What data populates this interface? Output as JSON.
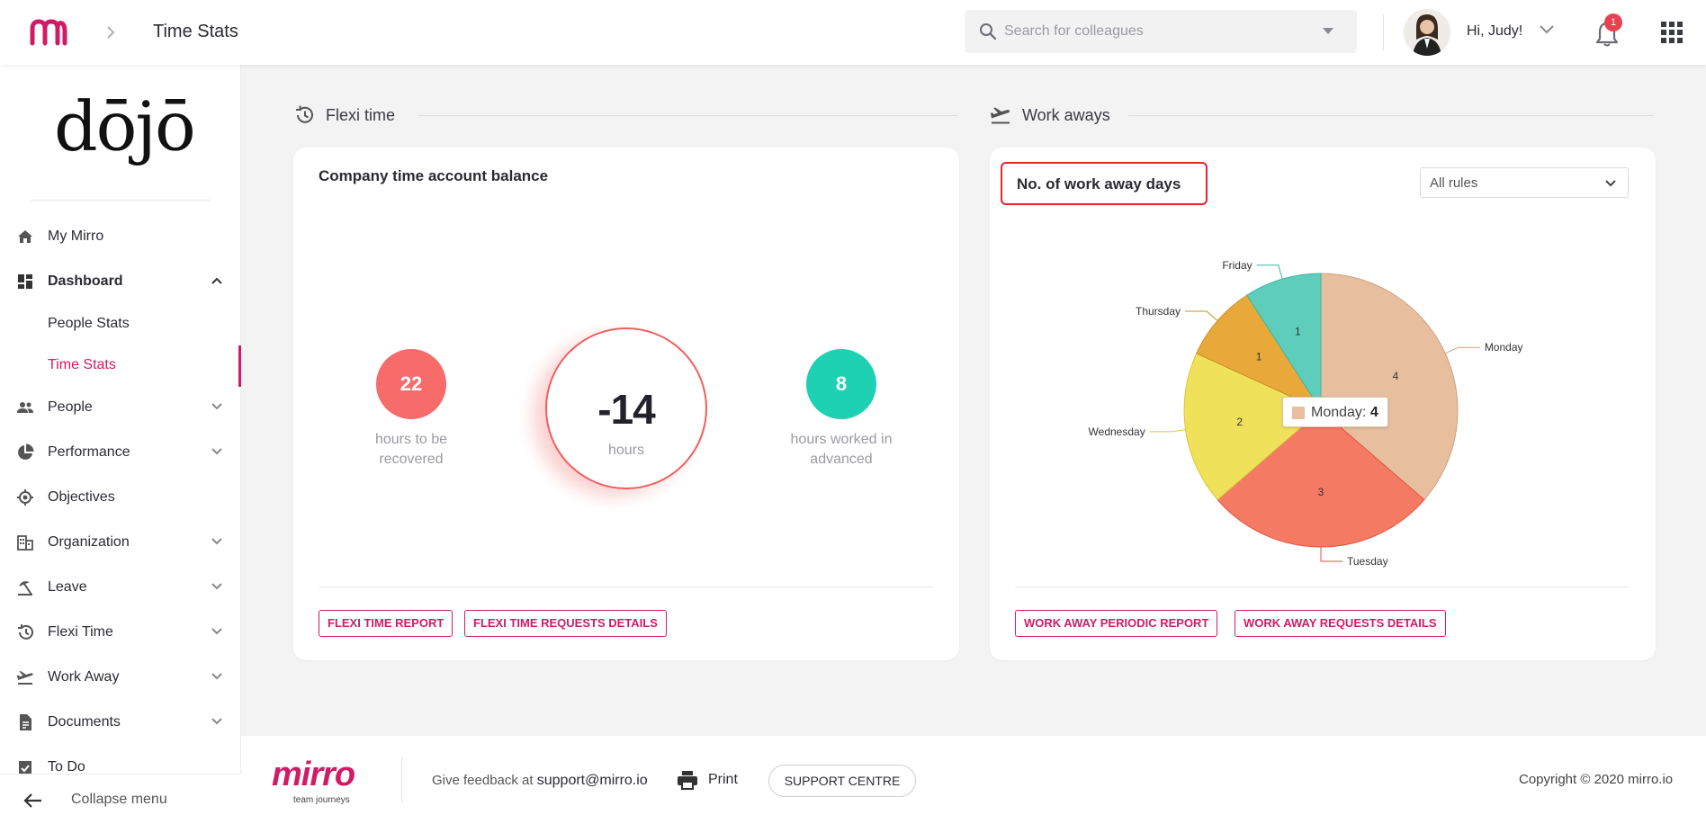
{
  "topbar": {
    "page_title": "Time Stats",
    "search_placeholder": "Search for colleagues",
    "greeting": "Hi, Judy!",
    "notification_count": "1"
  },
  "sidebar": {
    "brand": "dōjō",
    "items": [
      {
        "label": "My Mirro"
      },
      {
        "label": "Dashboard"
      },
      {
        "label": "People"
      },
      {
        "label": "Performance"
      },
      {
        "label": "Objectives"
      },
      {
        "label": "Organization"
      },
      {
        "label": "Leave"
      },
      {
        "label": "Flexi Time"
      },
      {
        "label": "Work Away"
      },
      {
        "label": "Documents"
      },
      {
        "label": "To Do"
      }
    ],
    "dashboard_subitems": [
      {
        "label": "People Stats"
      },
      {
        "label": "Time Stats"
      }
    ],
    "collapse_label": "Collapse menu"
  },
  "flexi": {
    "section_title": "Flexi time",
    "card_title": "Company time account balance",
    "to_recover_value": "22",
    "to_recover_caption": "hours to be recovered",
    "balance_value": "-14",
    "balance_unit": "hours",
    "advanced_value": "8",
    "advanced_caption": "hours worked in advanced",
    "report_button": "FLEXI TIME REPORT",
    "requests_button": "FLEXI TIME REQUESTS DETAILS"
  },
  "workaways": {
    "section_title": "Work aways",
    "card_title": "No. of work away days",
    "filter_value": "All rules",
    "tooltip_label": "Monday:",
    "tooltip_value": "4",
    "report_button": "WORK AWAY PERIODIC REPORT",
    "requests_button": "WORK AWAY REQUESTS DETAILS"
  },
  "chart_data": {
    "type": "pie",
    "title": "No. of work away days",
    "categories": [
      "Monday",
      "Tuesday",
      "Wednesday",
      "Thursday",
      "Friday"
    ],
    "values": [
      4,
      3,
      2,
      1,
      1
    ],
    "colors": [
      "#e7bf9f",
      "#f47a63",
      "#f0e15a",
      "#e8a93a",
      "#5fcdbb"
    ],
    "start": "12-o'clock, clockwise",
    "legend": "none (outside slice labels)"
  },
  "colors": {
    "accent": "#d01c66",
    "recover": "#f76b6b",
    "advanced": "#1fd1b3"
  },
  "footer": {
    "brand": "mirro",
    "tagline": "team journeys",
    "feedback_prefix": "Give feedback at",
    "feedback_email": "support@mirro.io",
    "print_label": "Print",
    "support_button": "SUPPORT CENTRE",
    "copyright": "Copyright © 2020 mirro.io"
  }
}
